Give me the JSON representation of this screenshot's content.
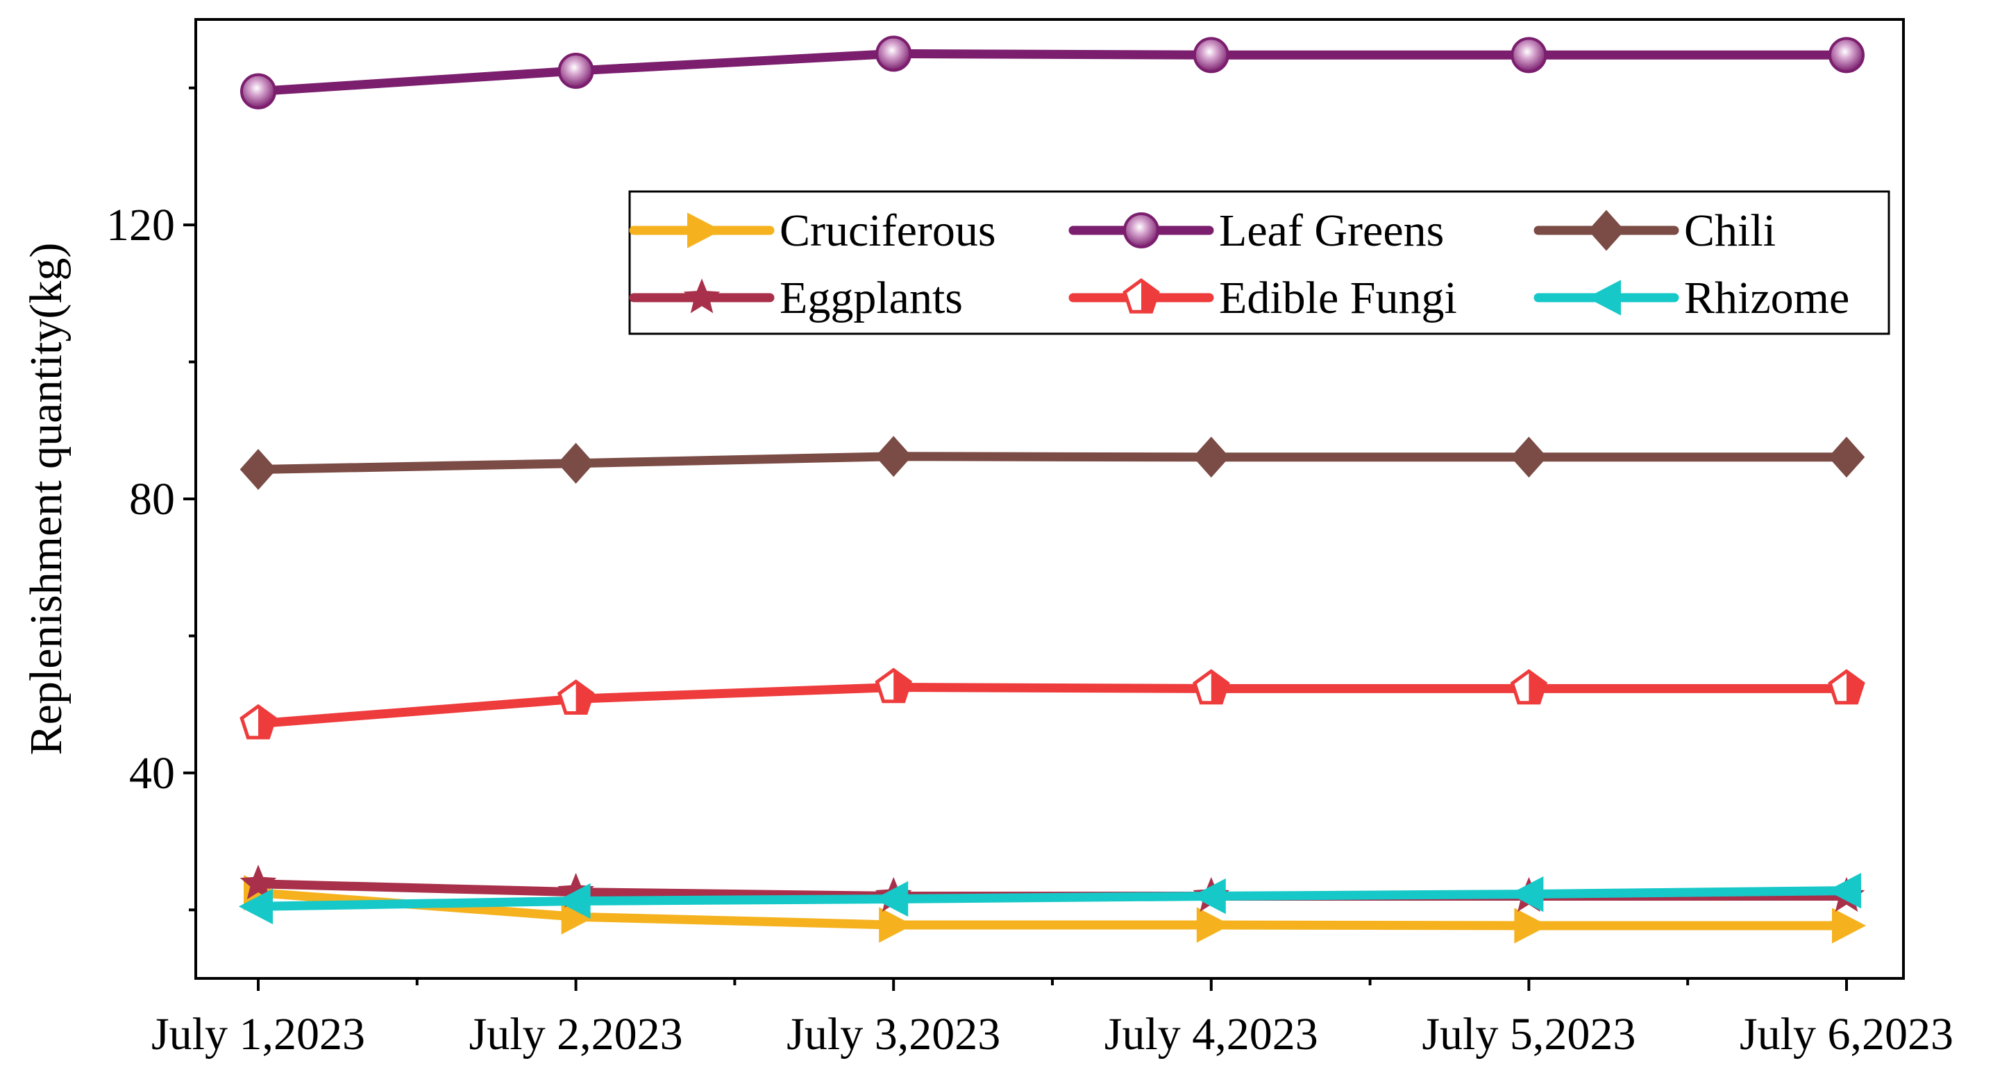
{
  "chart_data": {
    "type": "line",
    "title": "",
    "xlabel": "",
    "ylabel": "Replenishment quantity(kg)",
    "categories": [
      "July 1,2023",
      "July 2,2023",
      "July 3,2023",
      "July 4,2023",
      "July 5,2023",
      "July 6,2023"
    ],
    "ylim": [
      10,
      150
    ],
    "yticks": [
      40,
      80,
      120
    ],
    "grid": false,
    "legend_position": "top-right",
    "series": [
      {
        "name": "Cruciferous",
        "color": "#F5B21E",
        "marker": "triangle-right",
        "values": [
          22.5,
          19.0,
          17.8,
          17.8,
          17.7,
          17.7
        ]
      },
      {
        "name": "Leaf Greens",
        "color": "#7B1E6E",
        "marker": "sphere",
        "values": [
          139.5,
          142.5,
          145.0,
          144.8,
          144.8,
          144.8
        ]
      },
      {
        "name": "Chili",
        "color": "#7B4B45",
        "marker": "diamond",
        "values": [
          84.3,
          85.2,
          86.2,
          86.1,
          86.1,
          86.1
        ]
      },
      {
        "name": "Eggplants",
        "color": "#A8304A",
        "marker": "star",
        "values": [
          23.8,
          22.6,
          22.0,
          22.0,
          22.0,
          22.0
        ]
      },
      {
        "name": "Edible Fungi",
        "color": "#EE3B3B",
        "marker": "pentagon",
        "values": [
          47.2,
          50.8,
          52.5,
          52.3,
          52.3,
          52.3
        ]
      },
      {
        "name": "Rhizome",
        "color": "#16C8C8",
        "marker": "triangle-left",
        "values": [
          20.5,
          21.3,
          21.6,
          22.0,
          22.3,
          22.8
        ]
      }
    ]
  }
}
